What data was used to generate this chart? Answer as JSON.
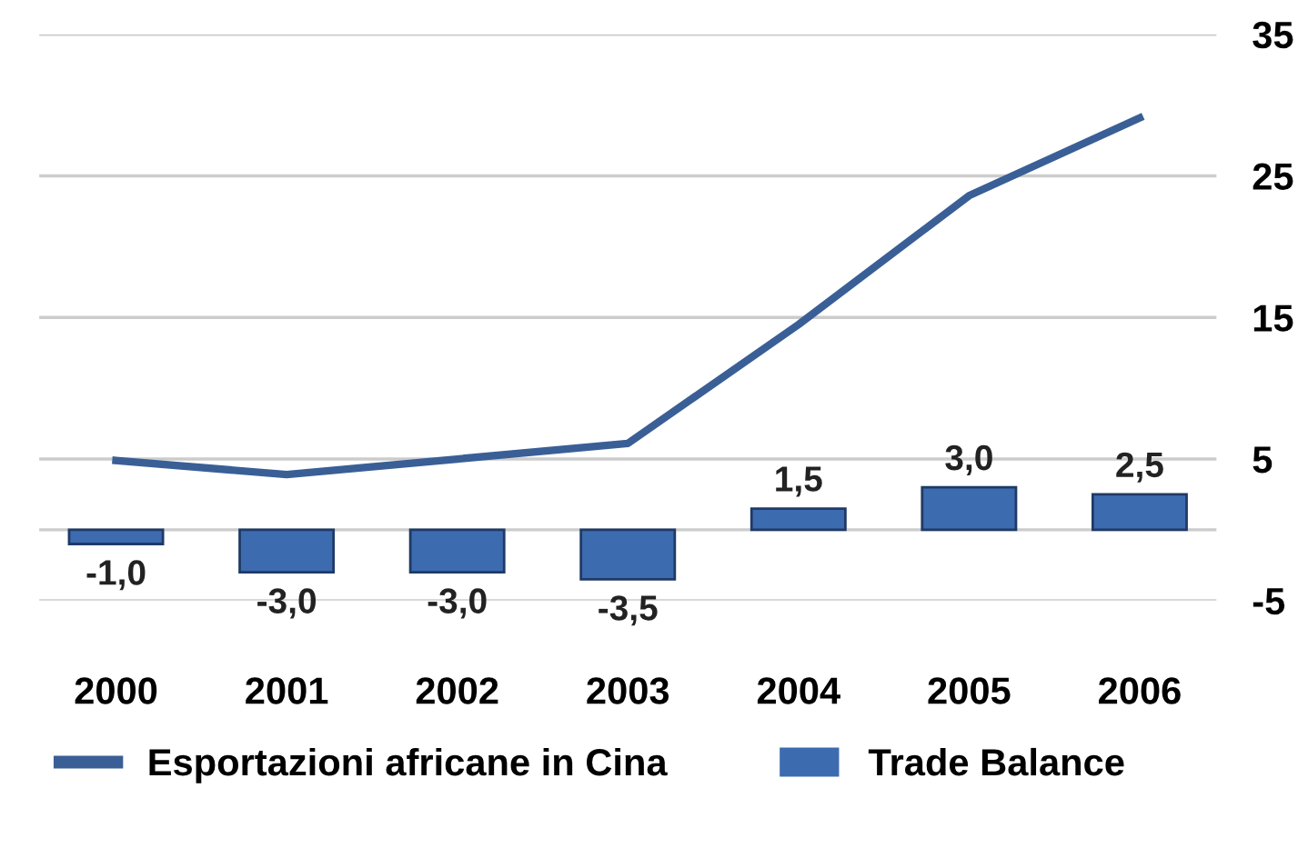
{
  "chart_data": {
    "type": "bar",
    "categories": [
      "2000",
      "2001",
      "2002",
      "2003",
      "2004",
      "2005",
      "2006"
    ],
    "series": [
      {
        "name": "Esportazioni africane in Cina",
        "type": "line",
        "color": "#3a5f96",
        "values": [
          4.9,
          3.9,
          5.0,
          6.1,
          14.5,
          23.6,
          29.1
        ]
      },
      {
        "name": "Trade Balance",
        "color": "#3d6bb0",
        "values": [
          -1.0,
          -3.0,
          -3.0,
          -3.5,
          1.5,
          3.0,
          2.5
        ],
        "value_labels": [
          "-1,0",
          "-3,0",
          "-3,0",
          "-3,5",
          "1,5",
          "3,0",
          "2,5"
        ]
      }
    ],
    "ylim": [
      -5,
      35
    ],
    "yticks": [
      -5,
      {
        "value": 0,
        "label": null
      },
      5,
      15,
      25,
      35
    ],
    "grid": "y",
    "legend": "bottom"
  }
}
